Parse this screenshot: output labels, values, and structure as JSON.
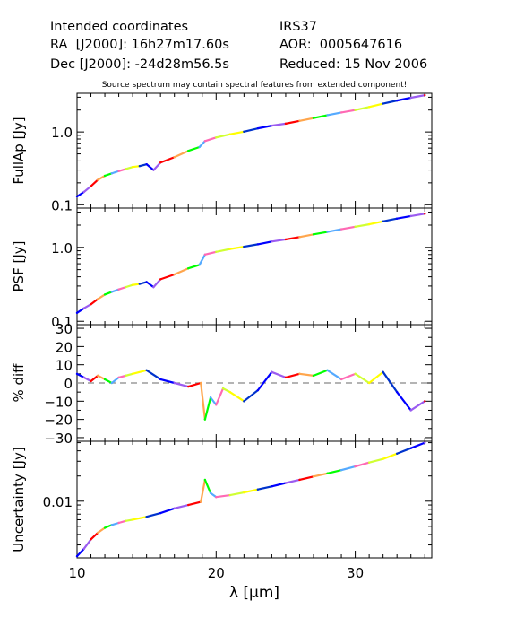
{
  "header": {
    "line1_left": "Intended coordinates",
    "line2_left": "RA  [J2000]: 16h27m17.60s",
    "line3_left": "Dec [J2000]: -24d28m56.5s",
    "line1_right": "IRS37",
    "line2_right": "AOR:  0005647616",
    "line3_right": "Reduced: 15 Nov 2006",
    "note": "Source spectrum may contain spectral features from extended component!"
  },
  "segment_colors": [
    "#0000ff",
    "#9b5cf0",
    "#ff0000",
    "#ffa64d",
    "#00ff00",
    "#55aaff",
    "#ff69b4",
    "#d0ff33",
    "#ffff00",
    "#0033cc"
  ],
  "chart_data": [
    {
      "type": "line",
      "panel": "fullap",
      "ylabel": "FullAp [Jy]",
      "yscale": "log",
      "ylim": [
        0.09,
        3.4
      ],
      "yticks": [
        "1.0",
        "0.1"
      ],
      "xlim": [
        10,
        35.5
      ],
      "series": [
        {
          "x": [
            10,
            10.5,
            11,
            11.5,
            12,
            12.5,
            13,
            13.5,
            14,
            14.5,
            15,
            15.5,
            16,
            17,
            18,
            18.8,
            19.2,
            20,
            21,
            22,
            23,
            24,
            25,
            26,
            27,
            28,
            29,
            30,
            31,
            32,
            33,
            34,
            35
          ],
          "y": [
            0.13,
            0.15,
            0.18,
            0.22,
            0.25,
            0.27,
            0.29,
            0.31,
            0.33,
            0.34,
            0.36,
            0.3,
            0.38,
            0.45,
            0.55,
            0.62,
            0.75,
            0.84,
            0.93,
            1.01,
            1.12,
            1.22,
            1.3,
            1.42,
            1.55,
            1.7,
            1.85,
            2.0,
            2.2,
            2.45,
            2.7,
            2.95,
            3.2
          ]
        }
      ]
    },
    {
      "type": "line",
      "panel": "psf",
      "ylabel": "PSF [Jy]",
      "yscale": "log",
      "ylim": [
        0.09,
        3.4
      ],
      "yticks": [
        "1.0",
        "0.1"
      ],
      "xlim": [
        10,
        35.5
      ],
      "series": [
        {
          "x": [
            10,
            10.5,
            11,
            11.5,
            12,
            12.5,
            13,
            13.5,
            14,
            14.5,
            15,
            15.5,
            16,
            17,
            18,
            18.8,
            19.2,
            20,
            21,
            22,
            23,
            24,
            25,
            26,
            27,
            28,
            29,
            30,
            31,
            32,
            33,
            34,
            35
          ],
          "y": [
            0.13,
            0.15,
            0.17,
            0.2,
            0.23,
            0.25,
            0.27,
            0.29,
            0.31,
            0.32,
            0.34,
            0.29,
            0.37,
            0.43,
            0.52,
            0.58,
            0.8,
            0.87,
            0.95,
            1.02,
            1.1,
            1.2,
            1.28,
            1.38,
            1.5,
            1.62,
            1.76,
            1.9,
            2.05,
            2.25,
            2.45,
            2.65,
            2.85
          ]
        }
      ]
    },
    {
      "type": "line",
      "panel": "diff",
      "ylabel": "% diff",
      "ylim": [
        -32,
        32
      ],
      "yticks": [
        "30",
        "20",
        "10",
        "0",
        "−10",
        "−20",
        "−30"
      ],
      "xlim": [
        10,
        35.5
      ],
      "series": [
        {
          "x": [
            10,
            10.5,
            11,
            11.5,
            12,
            12.5,
            13,
            13.5,
            14,
            15,
            16,
            17,
            18,
            18.9,
            19.2,
            19.6,
            20,
            20.5,
            21,
            22,
            23,
            24,
            25,
            26,
            27,
            28,
            29,
            30,
            31,
            32,
            33,
            34,
            35
          ],
          "y": [
            5,
            3,
            1,
            4,
            2,
            0,
            3,
            4,
            5,
            7,
            2,
            0,
            -2,
            0,
            -20,
            -8,
            -12,
            -3,
            -5,
            -10,
            -4,
            6,
            3,
            5,
            4,
            7,
            2,
            5,
            0,
            6,
            -5,
            -15,
            -10
          ]
        }
      ],
      "zero_line": true
    },
    {
      "type": "line",
      "panel": "uncertainty",
      "ylabel": "Uncertainty [Jy]",
      "xlabel": "λ [μm]",
      "yscale": "log",
      "ylim": [
        0.0021,
        0.052
      ],
      "yticks": [
        "0.01"
      ],
      "xlim": [
        10,
        35.5
      ],
      "xticks": [
        "10",
        "20",
        "30"
      ],
      "series": [
        {
          "x": [
            10,
            10.5,
            11,
            11.5,
            12,
            12.5,
            13,
            13.5,
            14,
            15,
            16,
            17,
            18,
            18.9,
            19.2,
            19.6,
            20,
            21,
            22,
            23,
            24,
            25,
            26,
            27,
            28,
            29,
            30,
            31,
            32,
            33,
            34,
            35
          ],
          "y": [
            0.0022,
            0.0027,
            0.0035,
            0.0042,
            0.0048,
            0.0052,
            0.0055,
            0.0058,
            0.006,
            0.0065,
            0.0072,
            0.0082,
            0.009,
            0.0098,
            0.018,
            0.0125,
            0.0112,
            0.0118,
            0.0127,
            0.0138,
            0.015,
            0.0165,
            0.018,
            0.0197,
            0.0215,
            0.0235,
            0.026,
            0.029,
            0.032,
            0.037,
            0.043,
            0.05
          ]
        }
      ]
    }
  ]
}
